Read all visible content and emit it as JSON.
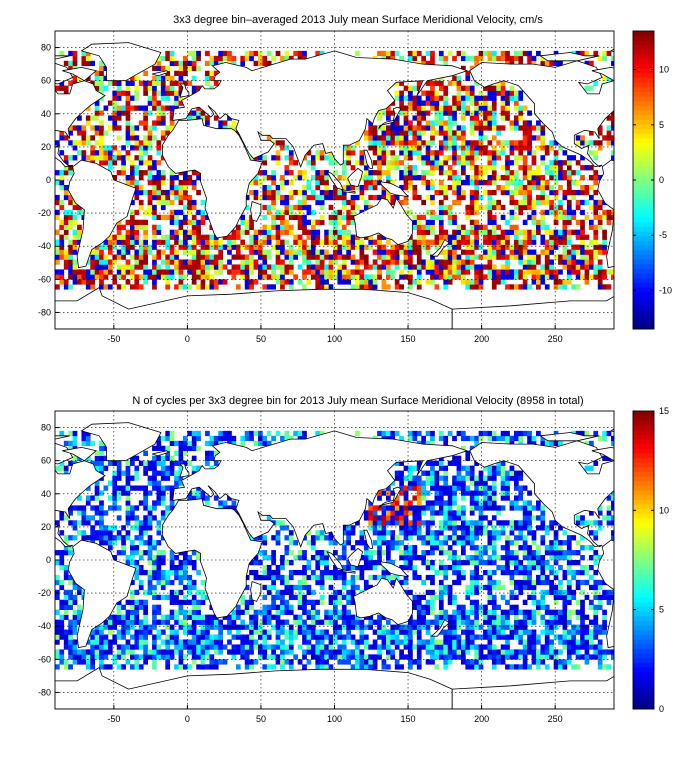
{
  "chart_data": [
    {
      "type": "heatmap",
      "title": "3x3 degree bin–averaged 2013 July mean Surface Meridional Velocity, cm/s",
      "xlabel": "",
      "ylabel": "",
      "xlim": [
        -90,
        290
      ],
      "ylim": [
        -90,
        90
      ],
      "x_ticks": [
        -50,
        0,
        50,
        100,
        150,
        200,
        250
      ],
      "y_ticks": [
        -80,
        -60,
        -40,
        -20,
        0,
        20,
        40,
        60,
        80
      ],
      "bin_size_deg": 3,
      "grid": true,
      "colormap": "jet",
      "colorbar": {
        "min": -13.5,
        "max": 13.5,
        "ticks": [
          -10,
          -5,
          0,
          5,
          10
        ],
        "placement": "right"
      }
    },
    {
      "type": "heatmap",
      "title": "N of cycles per 3x3 degree bin for 2013 July mean Surface Meridional Velocity (8958 in total)",
      "xlabel": "",
      "ylabel": "",
      "xlim": [
        -90,
        290
      ],
      "ylim": [
        -90,
        90
      ],
      "x_ticks": [
        -50,
        0,
        50,
        100,
        150,
        200,
        250
      ],
      "y_ticks": [
        -80,
        -60,
        -40,
        -20,
        0,
        20,
        40,
        60,
        80
      ],
      "bin_size_deg": 3,
      "grid": true,
      "colormap": "jet",
      "colorbar": {
        "min": 0,
        "max": 15,
        "ticks": [
          0,
          5,
          10,
          15
        ],
        "placement": "right"
      },
      "total_cycles": 8958
    }
  ]
}
